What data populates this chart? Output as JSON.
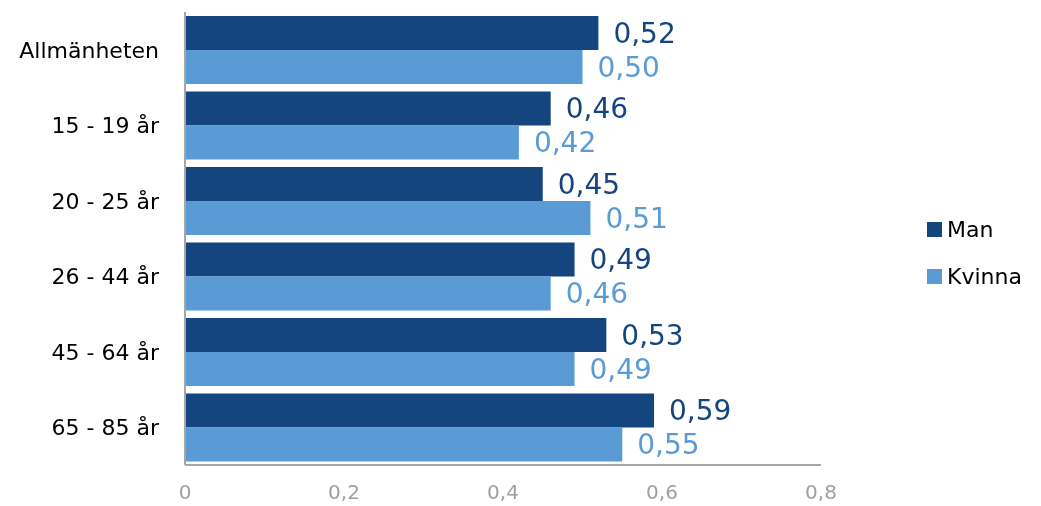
{
  "chart_data": {
    "type": "bar",
    "orientation": "horizontal",
    "categories": [
      "Allmänheten",
      "15 - 19 år",
      "20 - 25 år",
      "26 - 44 år",
      "45 - 64 år",
      "65 - 85 år"
    ],
    "series": [
      {
        "name": "Man",
        "color": "#14457f",
        "values": [
          0.52,
          0.46,
          0.45,
          0.49,
          0.53,
          0.59
        ],
        "value_labels": [
          "0,52",
          "0,46",
          "0,45",
          "0,49",
          "0,53",
          "0,59"
        ]
      },
      {
        "name": "Kvinna",
        "color": "#5b9bd5",
        "values": [
          0.5,
          0.42,
          0.51,
          0.46,
          0.49,
          0.55
        ],
        "value_labels": [
          "0,50",
          "0,42",
          "0,51",
          "0,46",
          "0,49",
          "0,55"
        ]
      }
    ],
    "xlim": [
      0,
      0.8
    ],
    "xticks": [
      0,
      {
        "value": 0.2,
        "label": "0,2"
      },
      {
        "value": 0.4,
        "label": "0,4"
      },
      {
        "value": 0.6,
        "label": "0,6"
      },
      {
        "value": 0.8,
        "label": "0,8"
      }
    ],
    "grid": false,
    "legend": "right"
  }
}
